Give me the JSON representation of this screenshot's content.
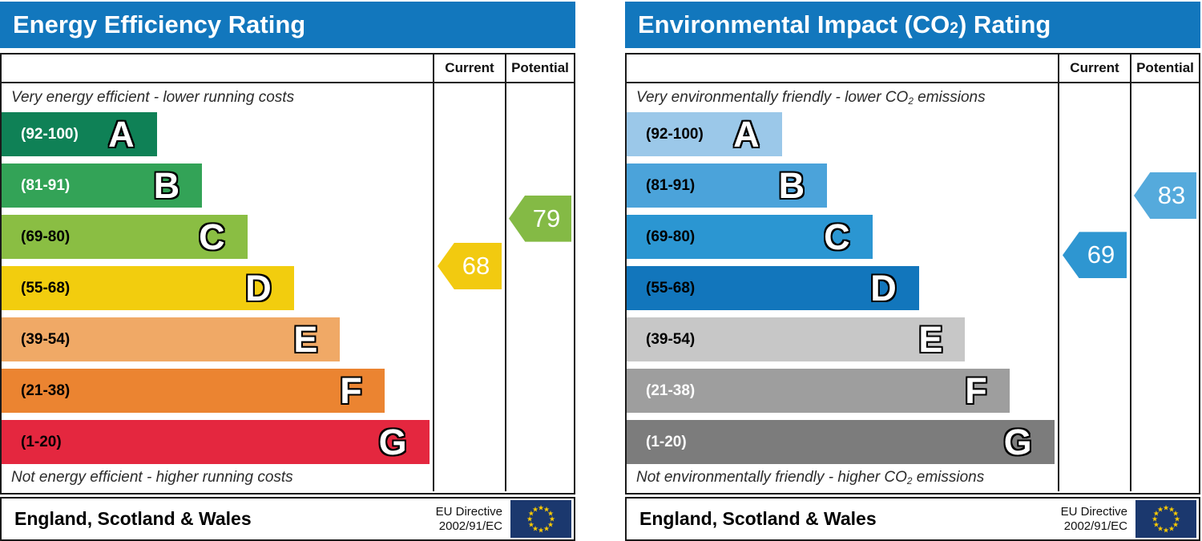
{
  "panels": [
    {
      "title": {
        "pre": "Energy Efficiency Rating",
        "sub": "",
        "post": ""
      },
      "columns": {
        "current": "Current",
        "potential": "Potential"
      },
      "caption_top": {
        "pre": "Very energy efficient - lower running costs",
        "sub": "",
        "post": ""
      },
      "caption_bottom": {
        "pre": "Not energy efficient - higher running costs",
        "sub": "",
        "post": ""
      },
      "bands": [
        {
          "letter": "A",
          "range": "(92-100)",
          "min": 92,
          "max": 100,
          "color": "#0f8156",
          "label_color": "#ffffff",
          "width_pct": 36
        },
        {
          "letter": "B",
          "range": "(81-91)",
          "min": 81,
          "max": 91,
          "color": "#33a357",
          "label_color": "#ffffff",
          "width_pct": 46.5
        },
        {
          "letter": "C",
          "range": "(69-80)",
          "min": 69,
          "max": 80,
          "color": "#8abe43",
          "label_color": "#000000",
          "width_pct": 57
        },
        {
          "letter": "D",
          "range": "(55-68)",
          "min": 55,
          "max": 68,
          "color": "#f2cd0e",
          "label_color": "#000000",
          "width_pct": 67.8
        },
        {
          "letter": "E",
          "range": "(39-54)",
          "min": 39,
          "max": 54,
          "color": "#f0a966",
          "label_color": "#000000",
          "width_pct": 78.5
        },
        {
          "letter": "F",
          "range": "(21-38)",
          "min": 21,
          "max": 38,
          "color": "#eb8431",
          "label_color": "#000000",
          "width_pct": 88.8
        },
        {
          "letter": "G",
          "range": "(1-20)",
          "min": 1,
          "max": 20,
          "color": "#e4273f",
          "label_color": "#000000",
          "width_pct": 99.2
        }
      ],
      "current": {
        "value": 68,
        "color": "#f2ca10"
      },
      "potential": {
        "value": 79,
        "color": "#84ba45"
      },
      "footer": {
        "region": "England, Scotland & Wales",
        "directive_line1": "EU Directive",
        "directive_line2": "2002/91/EC"
      }
    },
    {
      "title": {
        "pre": "Environmental Impact (CO",
        "sub": "2",
        "post": ") Rating"
      },
      "columns": {
        "current": "Current",
        "potential": "Potential"
      },
      "caption_top": {
        "pre": "Very environmentally friendly - lower CO",
        "sub": "2",
        "post": " emissions"
      },
      "caption_bottom": {
        "pre": "Not environmentally friendly - higher CO",
        "sub": "2",
        "post": " emissions"
      },
      "bands": [
        {
          "letter": "A",
          "range": "(92-100)",
          "min": 92,
          "max": 100,
          "color": "#9bc8e9",
          "label_color": "#000000",
          "width_pct": 36
        },
        {
          "letter": "B",
          "range": "(81-91)",
          "min": 81,
          "max": 91,
          "color": "#4ba3da",
          "label_color": "#000000",
          "width_pct": 46.5
        },
        {
          "letter": "C",
          "range": "(69-80)",
          "min": 69,
          "max": 80,
          "color": "#2b96d2",
          "label_color": "#000000",
          "width_pct": 57
        },
        {
          "letter": "D",
          "range": "(55-68)",
          "min": 55,
          "max": 68,
          "color": "#1276bc",
          "label_color": "#000000",
          "width_pct": 67.8
        },
        {
          "letter": "E",
          "range": "(39-54)",
          "min": 39,
          "max": 54,
          "color": "#c7c7c7",
          "label_color": "#000000",
          "width_pct": 78.5
        },
        {
          "letter": "F",
          "range": "(21-38)",
          "min": 21,
          "max": 38,
          "color": "#9e9e9e",
          "label_color": "#ffffff",
          "width_pct": 88.8
        },
        {
          "letter": "G",
          "range": "(1-20)",
          "min": 1,
          "max": 20,
          "color": "#7c7c7c",
          "label_color": "#ffffff",
          "width_pct": 99.2
        }
      ],
      "current": {
        "value": 69,
        "color": "#2e96d1"
      },
      "potential": {
        "value": 83,
        "color": "#55aadc"
      },
      "footer": {
        "region": "England, Scotland & Wales",
        "directive_line1": "EU Directive",
        "directive_line2": "2002/91/EC"
      }
    }
  ],
  "colors": {
    "header_blue": "#1277bd",
    "flag_navy": "#1b386e",
    "flag_star": "#ffcc00",
    "border": "#1a1a1a"
  },
  "chart_data": [
    {
      "type": "bar",
      "title": "Energy Efficiency Rating",
      "categories": [
        "A (92-100)",
        "B (81-91)",
        "C (69-80)",
        "D (55-68)",
        "E (39-54)",
        "F (21-38)",
        "G (1-20)"
      ],
      "series": [
        {
          "name": "Current",
          "values": [
            68
          ],
          "band": "D"
        },
        {
          "name": "Potential",
          "values": [
            79
          ],
          "band": "C"
        }
      ],
      "xlabel": "",
      "ylabel": "",
      "legend_position": "table-columns-right",
      "note": "EPC band ladder; bar lengths are fixed scale steps A-G, arrows mark current/potential ratings"
    },
    {
      "type": "bar",
      "title": "Environmental Impact (CO2) Rating",
      "categories": [
        "A (92-100)",
        "B (81-91)",
        "C (69-80)",
        "D (55-68)",
        "E (39-54)",
        "F (21-38)",
        "G (1-20)"
      ],
      "series": [
        {
          "name": "Current",
          "values": [
            69
          ],
          "band": "C"
        },
        {
          "name": "Potential",
          "values": [
            83
          ],
          "band": "B"
        }
      ],
      "xlabel": "",
      "ylabel": "",
      "legend_position": "table-columns-right",
      "note": "CO2 band ladder; bar lengths are fixed scale steps A-G, arrows mark current/potential ratings"
    }
  ]
}
